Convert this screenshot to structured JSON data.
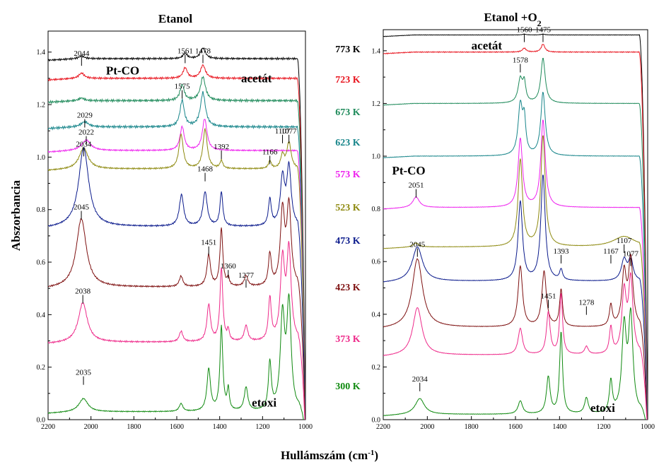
{
  "figure": {
    "ylabel": "Abszorbancia",
    "xlabel_main": "Hullámszám (cm",
    "xlabel_sup": "-1",
    "xlabel_end": ")"
  },
  "temperatures": [
    {
      "label": "773 K",
      "color": "#000000"
    },
    {
      "label": "723 K",
      "color": "#e8141e"
    },
    {
      "label": "673 K",
      "color": "#1e8a5a"
    },
    {
      "label": "623 K",
      "color": "#17858a"
    },
    {
      "label": "573 K",
      "color": "#ee22ee"
    },
    {
      "label": "523 K",
      "color": "#8e8a10"
    },
    {
      "label": "473 K",
      "color": "#0a1a8c"
    },
    {
      "label": "423 K",
      "color": "#7e1010"
    },
    {
      "label": "373 K",
      "color": "#ee2a8a"
    },
    {
      "label": "300 K",
      "color": "#108a10"
    }
  ],
  "chart_data": [
    {
      "type": "line",
      "title": "Etanol",
      "xlabel": "Hullámszám (cm-1)",
      "ylabel": "Abszorbancia",
      "xlim": [
        2200,
        1000
      ],
      "ylim": [
        0.0,
        1.48
      ],
      "x_ticks": [
        2200,
        2000,
        1800,
        1600,
        1400,
        1200,
        1000
      ],
      "y_ticks": [
        "0.0",
        "0.2",
        "0.4",
        "0.6",
        "0.8",
        "1.0",
        "1.2",
        "1.4"
      ],
      "y_tick_values": [
        0.0,
        0.2,
        0.4,
        0.6,
        0.8,
        1.0,
        1.2,
        1.4
      ],
      "series": [
        {
          "color": "#000000",
          "baseline": 1.375,
          "noise": 0.004,
          "peaks": [
            [
              2044,
              0.01,
              15
            ],
            [
              1561,
              0.02,
              12
            ],
            [
              1478,
              0.04,
              14
            ]
          ]
        },
        {
          "color": "#e8141e",
          "baseline": 1.3,
          "noise": 0.004,
          "peaks": [
            [
              2044,
              0.02,
              15
            ],
            [
              1561,
              0.04,
              12
            ],
            [
              1478,
              0.05,
              14
            ]
          ]
        },
        {
          "color": "#1e8a5a",
          "baseline": 1.215,
          "noise": 0.005,
          "peaks": [
            [
              2044,
              0.01,
              15
            ],
            [
              1575,
              0.06,
              12
            ],
            [
              1478,
              0.09,
              14
            ]
          ]
        },
        {
          "color": "#17858a",
          "baseline": 1.115,
          "noise": 0.005,
          "peaks": [
            [
              2029,
              0.02,
              20
            ],
            [
              1575,
              0.1,
              12
            ],
            [
              1478,
              0.13,
              14
            ]
          ]
        },
        {
          "color": "#ee22ee",
          "baseline": 1.025,
          "noise": 0.003,
          "peaks": [
            [
              2022,
              0.04,
              25
            ],
            [
              1575,
              0.09,
              12
            ],
            [
              1470,
              0.12,
              13
            ]
          ]
        },
        {
          "color": "#8e8a10",
          "baseline": 0.955,
          "noise": 0.003,
          "peaks": [
            [
              2034,
              0.08,
              25
            ],
            [
              1580,
              0.13,
              12
            ],
            [
              1468,
              0.15,
              12
            ],
            [
              1392,
              0.03,
              8
            ],
            [
              1166,
              0.03,
              8
            ],
            [
              1107,
              0.05,
              10
            ],
            [
              1077,
              0.1,
              12
            ]
          ]
        },
        {
          "color": "#0a1a8c",
          "baseline": 0.735,
          "noise": 0.003,
          "peaks": [
            [
              2034,
              0.3,
              28
            ],
            [
              1578,
              0.12,
              12
            ],
            [
              1468,
              0.13,
              12
            ],
            [
              1392,
              0.13,
              8
            ],
            [
              1166,
              0.1,
              8
            ],
            [
              1107,
              0.18,
              12
            ],
            [
              1077,
              0.22,
              12
            ]
          ]
        },
        {
          "color": "#7e1010",
          "baseline": 0.505,
          "noise": 0.003,
          "peaks": [
            [
              2045,
              0.26,
              28
            ],
            [
              1580,
              0.04,
              10
            ],
            [
              1451,
              0.12,
              10
            ],
            [
              1392,
              0.22,
              8
            ],
            [
              1360,
              0.03,
              6
            ],
            [
              1277,
              0.04,
              10
            ],
            [
              1166,
              0.12,
              8
            ],
            [
              1107,
              0.28,
              12
            ],
            [
              1077,
              0.3,
              12
            ]
          ]
        },
        {
          "color": "#ee2a8a",
          "baseline": 0.295,
          "noise": 0.003,
          "peaks": [
            [
              2038,
              0.15,
              25
            ],
            [
              1580,
              0.04,
              10
            ],
            [
              1451,
              0.14,
              10
            ],
            [
              1392,
              0.28,
              8
            ],
            [
              1360,
              0.04,
              6
            ],
            [
              1277,
              0.06,
              10
            ],
            [
              1166,
              0.16,
              8
            ],
            [
              1107,
              0.3,
              12
            ],
            [
              1077,
              0.34,
              12
            ]
          ]
        },
        {
          "color": "#108a10",
          "baseline": 0.03,
          "noise": 0.002,
          "peaks": [
            [
              2035,
              0.05,
              25
            ],
            [
              1580,
              0.03,
              10
            ],
            [
              1451,
              0.16,
              10
            ],
            [
              1392,
              0.32,
              8
            ],
            [
              1360,
              0.08,
              6
            ],
            [
              1277,
              0.09,
              10
            ],
            [
              1166,
              0.18,
              8
            ],
            [
              1107,
              0.35,
              12
            ],
            [
              1077,
              0.4,
              12
            ]
          ]
        }
      ],
      "peak_labels": [
        {
          "text": "2044",
          "x": 2044,
          "y": 1.38
        },
        {
          "text": "1561",
          "x": 1561,
          "y": 1.39
        },
        {
          "text": "1478",
          "x": 1478,
          "y": 1.39
        },
        {
          "text": "1575",
          "x": 1575,
          "y": 1.255
        },
        {
          "text": "2029",
          "x": 2029,
          "y": 1.145
        },
        {
          "text": "2022",
          "x": 2022,
          "y": 1.08
        },
        {
          "text": "1107",
          "x": 1107,
          "y": 1.085
        },
        {
          "text": "1077",
          "x": 1077,
          "y": 1.085
        },
        {
          "text": "1392",
          "x": 1392,
          "y": 1.025
        },
        {
          "text": "1166",
          "x": 1166,
          "y": 1.005
        },
        {
          "text": "2034",
          "x": 2034,
          "y": 1.035
        },
        {
          "text": "1468",
          "x": 1468,
          "y": 0.94
        },
        {
          "text": "2045",
          "x": 2045,
          "y": 0.795
        },
        {
          "text": "1451",
          "x": 1451,
          "y": 0.66
        },
        {
          "text": "1360",
          "x": 1360,
          "y": 0.57
        },
        {
          "text": "1277",
          "x": 1277,
          "y": 0.535
        },
        {
          "text": "2038",
          "x": 2038,
          "y": 0.475
        },
        {
          "text": "2035",
          "x": 2035,
          "y": 0.165
        }
      ],
      "text_annotations": [
        {
          "text": "Pt-CO",
          "x": 1930,
          "y": 1.315
        },
        {
          "text": "acetát",
          "x": 1300,
          "y": 1.285
        },
        {
          "text": "etoxi",
          "x": 1250,
          "y": 0.05
        }
      ]
    },
    {
      "type": "line",
      "title_main": "Etanol +O",
      "title_sub": "2",
      "title": "Etanol +O2",
      "xlabel": "Hullámszám (cm-1)",
      "ylabel": "Abszorbancia",
      "xlim": [
        2200,
        1000
      ],
      "ylim": [
        0.0,
        1.48
      ],
      "x_ticks": [
        2200,
        2000,
        1800,
        1600,
        1400,
        1200,
        1000
      ],
      "y_ticks": [
        "0.0",
        "0.2",
        "0.4",
        "0.6",
        "0.8",
        "1.0",
        "1.2",
        "1.4"
      ],
      "y_tick_values": [
        0.0,
        0.2,
        0.4,
        0.6,
        0.8,
        1.0,
        1.2,
        1.4
      ],
      "series": [
        {
          "color": "#000000",
          "baseline": 1.46,
          "noise": 0.001,
          "peaks": [
            [
              1560,
              0.003,
              10
            ],
            [
              1475,
              0.003,
              10
            ]
          ]
        },
        {
          "color": "#e8141e",
          "baseline": 1.395,
          "noise": 0.002,
          "peaks": [
            [
              1560,
              0.015,
              10
            ],
            [
              1475,
              0.03,
              10
            ]
          ]
        },
        {
          "color": "#1e8a5a",
          "baseline": 1.2,
          "noise": 0.001,
          "peaks": [
            [
              1578,
              0.09,
              12
            ],
            [
              1560,
              0.07,
              8
            ],
            [
              1475,
              0.17,
              12
            ]
          ]
        },
        {
          "color": "#17858a",
          "baseline": 1.0,
          "noise": 0.001,
          "peaks": [
            [
              1578,
              0.19,
              12
            ],
            [
              1560,
              0.12,
              8
            ],
            [
              1475,
              0.24,
              12
            ]
          ]
        },
        {
          "color": "#ee22ee",
          "baseline": 0.805,
          "noise": 0.001,
          "peaks": [
            [
              2051,
              0.04,
              18
            ],
            [
              1578,
              0.26,
              12
            ],
            [
              1475,
              0.33,
              12
            ]
          ]
        },
        {
          "color": "#8e8a10",
          "baseline": 0.655,
          "noise": 0.001,
          "peaks": [
            [
              2051,
              0.015,
              15
            ],
            [
              1578,
              0.33,
              12
            ],
            [
              1475,
              0.42,
              12
            ],
            [
              1107,
              0.04,
              60
            ]
          ]
        },
        {
          "color": "#0a1a8c",
          "baseline": 0.525,
          "noise": 0.001,
          "peaks": [
            [
              2045,
              0.13,
              28
            ],
            [
              1578,
              0.3,
              12
            ],
            [
              1475,
              0.4,
              12
            ],
            [
              1393,
              0.04,
              8
            ],
            [
              1107,
              0.08,
              15
            ],
            [
              1077,
              0.08,
              12
            ]
          ]
        },
        {
          "color": "#7e1010",
          "baseline": 0.35,
          "noise": 0.001,
          "peaks": [
            [
              2045,
              0.26,
              28
            ],
            [
              1578,
              0.23,
              12
            ],
            [
              1470,
              0.21,
              12
            ],
            [
              1393,
              0.14,
              8
            ],
            [
              1167,
              0.08,
              8
            ],
            [
              1107,
              0.2,
              12
            ],
            [
              1077,
              0.25,
              12
            ]
          ]
        },
        {
          "color": "#ee2a8a",
          "baseline": 0.245,
          "noise": 0.001,
          "peaks": [
            [
              2045,
              0.18,
              25
            ],
            [
              1578,
              0.1,
              12
            ],
            [
              1451,
              0.16,
              10
            ],
            [
              1393,
              0.23,
              8
            ],
            [
              1278,
              0.03,
              10
            ],
            [
              1167,
              0.1,
              8
            ],
            [
              1107,
              0.23,
              12
            ],
            [
              1077,
              0.28,
              12
            ]
          ]
        },
        {
          "color": "#108a10",
          "baseline": 0.02,
          "noise": 0.001,
          "peaks": [
            [
              2034,
              0.06,
              25
            ],
            [
              1578,
              0.05,
              12
            ],
            [
              1451,
              0.14,
              10
            ],
            [
              1393,
              0.31,
              8
            ],
            [
              1278,
              0.06,
              10
            ],
            [
              1167,
              0.12,
              8
            ],
            [
              1107,
              0.32,
              12
            ],
            [
              1077,
              0.36,
              12
            ]
          ]
        }
      ],
      "peak_labels": [
        {
          "text": "1560",
          "x": 1560,
          "y": 1.465
        },
        {
          "text": "1475",
          "x": 1475,
          "y": 1.465
        },
        {
          "text": "1578",
          "x": 1578,
          "y": 1.35
        },
        {
          "text": "2051",
          "x": 2051,
          "y": 0.875
        },
        {
          "text": "2045",
          "x": 2045,
          "y": 0.65
        },
        {
          "text": "1393",
          "x": 1393,
          "y": 0.625
        },
        {
          "text": "1167",
          "x": 1167,
          "y": 0.625
        },
        {
          "text": "1107",
          "x": 1107,
          "y": 0.665
        },
        {
          "text": "1077",
          "x": 1077,
          "y": 0.615
        },
        {
          "text": "1451",
          "x": 1451,
          "y": 0.455
        },
        {
          "text": "1278",
          "x": 1278,
          "y": 0.43
        },
        {
          "text": "2034",
          "x": 2034,
          "y": 0.14
        }
      ],
      "text_annotations": [
        {
          "text": "acetát",
          "x": 1800,
          "y": 1.405
        },
        {
          "text": "Pt-CO",
          "x": 2160,
          "y": 0.93
        },
        {
          "text": "etoxi",
          "x": 1260,
          "y": 0.03
        }
      ]
    }
  ]
}
